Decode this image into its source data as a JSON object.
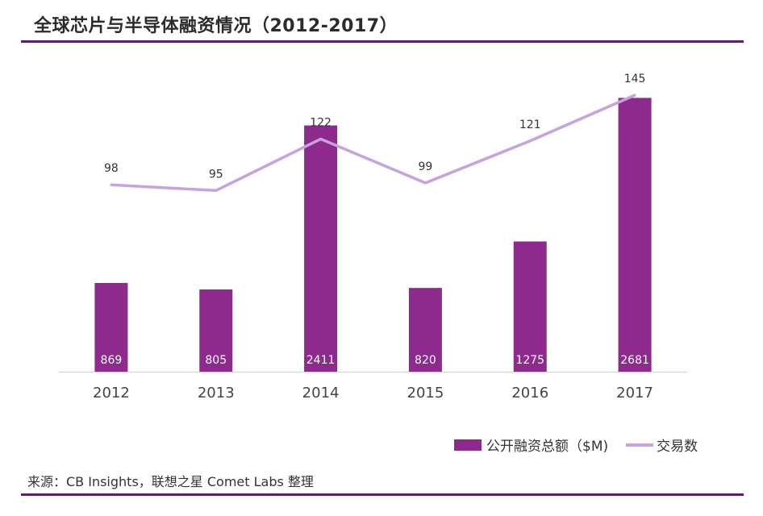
{
  "title": "全球芯片与半导体融资情况（2012-2017）",
  "source": "来源：CB Insights，联想之星 Comet Labs 整理",
  "colors": {
    "bar": "#8e2a8e",
    "line": "#c4a3e0",
    "rule": "#5b1f6b"
  },
  "chart_data": {
    "type": "bar+line",
    "categories": [
      "2012",
      "2013",
      "2014",
      "2015",
      "2016",
      "2017"
    ],
    "series": [
      {
        "name": "公开融资总额（$M)",
        "type": "bar",
        "values": [
          869,
          805,
          2411,
          820,
          1275,
          2681
        ],
        "ylim": [
          0,
          2700
        ]
      },
      {
        "name": "交易数",
        "type": "line",
        "values": [
          98,
          95,
          122,
          99,
          121,
          145
        ],
        "ylim": [
          0,
          156
        ]
      }
    ],
    "bar_labels": [
      "869",
      "805",
      "2411",
      "820",
      "1275",
      "2681"
    ],
    "line_labels": [
      "98",
      "95",
      "122",
      "99",
      "121",
      "145"
    ]
  }
}
